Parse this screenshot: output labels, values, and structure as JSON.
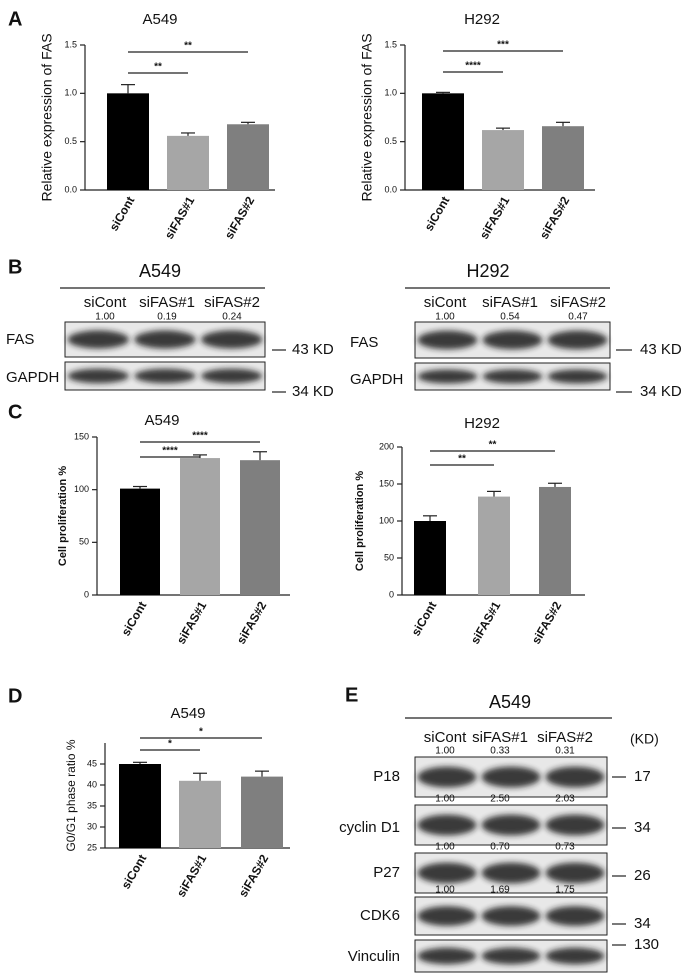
{
  "panel_labels": [
    "A",
    "B",
    "C",
    "D",
    "E"
  ],
  "chart_data": [
    {
      "type": "bar",
      "title": "A549",
      "y_label": "Relative expression of FAS",
      "categories": [
        "siCont",
        "siFAS#1",
        "siFAS#2"
      ],
      "values": [
        1.0,
        0.56,
        0.68
      ],
      "errors": [
        0.09,
        0.03,
        0.02
      ],
      "colors": [
        "#000000",
        "#a6a6a6",
        "#7f7f7f"
      ],
      "ylim": [
        0,
        1.5
      ],
      "yticks": [
        {
          "value": 0,
          "label": "0.0"
        },
        0.5,
        {
          "value": 1,
          "label": "1.0"
        },
        1.5
      ],
      "significance": [
        {
          "label": "**",
          "from": "siCont",
          "to": "siFAS#1"
        },
        {
          "label": "**",
          "from": "siCont",
          "to": "siFAS#2"
        }
      ]
    },
    {
      "type": "bar",
      "title": "H292",
      "y_label": "Relative expression of FAS",
      "categories": [
        "siCont",
        "siFAS#1",
        "siFAS#2"
      ],
      "values": [
        1.0,
        0.62,
        0.66
      ],
      "errors": [
        0.01,
        0.02,
        0.04
      ],
      "colors": [
        "#000000",
        "#a6a6a6",
        "#7f7f7f"
      ],
      "ylim": [
        0,
        1.5
      ],
      "yticks": [
        {
          "value": 0,
          "label": "0.0"
        },
        0.5,
        {
          "value": 1,
          "label": "1.0"
        },
        1.5
      ],
      "significance": [
        {
          "label": "****",
          "from": "siCont",
          "to": "siFAS#1"
        },
        {
          "label": "***",
          "from": "siCont",
          "to": "siFAS#2"
        }
      ]
    },
    {
      "type": "bar",
      "title": "A549",
      "y_label": "Cell proliferation %",
      "categories": [
        "siCont",
        "siFAS#1",
        "siFAS#2"
      ],
      "values": [
        101,
        130,
        128
      ],
      "errors": [
        2,
        3,
        8
      ],
      "colors": [
        "#000000",
        "#a6a6a6",
        "#7f7f7f"
      ],
      "ylim": [
        0,
        150
      ],
      "yticks": [
        0,
        50,
        100,
        150
      ],
      "significance": [
        {
          "label": "****",
          "from": "siCont",
          "to": "siFAS#1"
        },
        {
          "label": "****",
          "from": "siCont",
          "to": "siFAS#2"
        }
      ]
    },
    {
      "type": "bar",
      "title": "H292",
      "y_label": "Cell proliferation %",
      "categories": [
        "siCont",
        "siFAS#1",
        "siFAS#2"
      ],
      "values": [
        100,
        133,
        146
      ],
      "errors": [
        7,
        7,
        5
      ],
      "colors": [
        "#000000",
        "#a6a6a6",
        "#7f7f7f"
      ],
      "ylim": [
        0,
        200
      ],
      "yticks": [
        0,
        50,
        100,
        150,
        200
      ],
      "significance": [
        {
          "label": "**",
          "from": "siCont",
          "to": "siFAS#1"
        },
        {
          "label": "**",
          "from": "siCont",
          "to": "siFAS#2"
        }
      ]
    },
    {
      "type": "bar",
      "title": "A549",
      "y_label": "G0/G1 phase ratio %",
      "categories": [
        "siCont",
        "siFAS#1",
        "siFAS#2"
      ],
      "values": [
        45,
        41,
        42
      ],
      "errors": [
        0.4,
        1.8,
        1.3
      ],
      "colors": [
        "#000000",
        "#a6a6a6",
        "#7f7f7f"
      ],
      "ylim": [
        25,
        50
      ],
      "yticks": [
        25,
        30,
        35,
        40,
        45
      ],
      "significance": [
        {
          "label": "*",
          "from": "siCont",
          "to": "siFAS#1"
        },
        {
          "label": "*",
          "from": "siCont",
          "to": "siFAS#2"
        }
      ]
    }
  ],
  "blots": [
    {
      "title": "A549",
      "lanes": [
        "siCont",
        "siFAS#1",
        "siFAS#2"
      ],
      "rows": [
        {
          "label": "FAS",
          "quant": [
            "1.00",
            "0.19",
            "0.24"
          ],
          "size": "43 KD"
        },
        {
          "label": "GAPDH",
          "size": "34 KD"
        }
      ]
    },
    {
      "title": "H292",
      "lanes": [
        "siCont",
        "siFAS#1",
        "siFAS#2"
      ],
      "rows": [
        {
          "label": "FAS",
          "quant": [
            "1.00",
            "0.54",
            "0.47"
          ],
          "size": "43 KD"
        },
        {
          "label": "GAPDH",
          "size": "34 KD"
        }
      ]
    },
    {
      "title": "A549",
      "unit": "(KD)",
      "lanes": [
        "siCont",
        "siFAS#1",
        "siFAS#2"
      ],
      "rows": [
        {
          "label": "P18",
          "quant": [
            "1.00",
            "0.33",
            "0.31"
          ],
          "size": "17"
        },
        {
          "label": "cyclin D1",
          "quant": [
            "1.00",
            "2.50",
            "2.03"
          ],
          "size": "34"
        },
        {
          "label": "P27",
          "quant": [
            "1.00",
            "0.70",
            "0.73"
          ],
          "size": "26"
        },
        {
          "label": "CDK6",
          "quant": [
            "1.00",
            "1.69",
            "1.75"
          ],
          "size": "34"
        },
        {
          "label": "Vinculin",
          "size": "130"
        }
      ]
    }
  ]
}
